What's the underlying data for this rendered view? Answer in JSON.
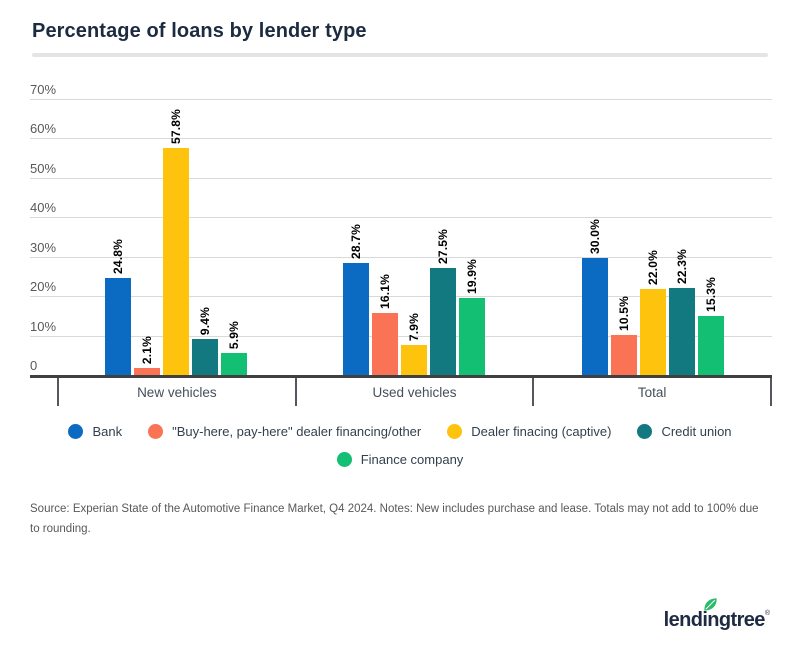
{
  "header": {
    "title": "Percentage of loans by lender type"
  },
  "chart_data": {
    "type": "bar",
    "title": "Percentage of loans by lender type",
    "categories": [
      "New vehicles",
      "Used vehicles",
      "Total"
    ],
    "series": [
      {
        "name": "Bank",
        "color": "#0b6bc3",
        "values": [
          24.8,
          28.7,
          30.0
        ]
      },
      {
        "name": "\"Buy-here, pay-here\" dealer financing/other",
        "color": "#fb7355",
        "values": [
          2.1,
          16.1,
          10.5
        ]
      },
      {
        "name": "Dealer finacing (captive)",
        "color": "#fdc30d",
        "values": [
          57.8,
          7.9,
          22.0
        ]
      },
      {
        "name": "Credit union",
        "color": "#11797f",
        "values": [
          9.4,
          27.5,
          22.3
        ]
      },
      {
        "name": "Finance company",
        "color": "#13bf72",
        "values": [
          5.9,
          19.9,
          15.3
        ]
      }
    ],
    "value_label_format": "one_decimal_percent",
    "y_ticks": [
      {
        "value": 0,
        "label": "0"
      },
      {
        "value": 10,
        "label": "10%"
      },
      {
        "value": 20,
        "label": "20%"
      },
      {
        "value": 30,
        "label": "30%"
      },
      {
        "value": 40,
        "label": "40%"
      },
      {
        "value": 50,
        "label": "50%"
      },
      {
        "value": 60,
        "label": "60%"
      },
      {
        "value": 70,
        "label": "70%"
      }
    ],
    "ylim": [
      0,
      70
    ],
    "grid": true,
    "legend_position": "bottom",
    "axis_colors": {
      "baseline": "#404040",
      "gridline": "#d9d9d9",
      "tick_text": "#595959"
    }
  },
  "footer": {
    "source_note": "Source: Experian State of the Automotive Finance Market, Q4 2024. Notes: New includes purchase and lease. Totals may not add to 100% due to rounding."
  },
  "logo": {
    "brand": "lendingtree",
    "registered": "®",
    "leaf_color": "#2abc6a",
    "text_color": "#1d2c42"
  }
}
